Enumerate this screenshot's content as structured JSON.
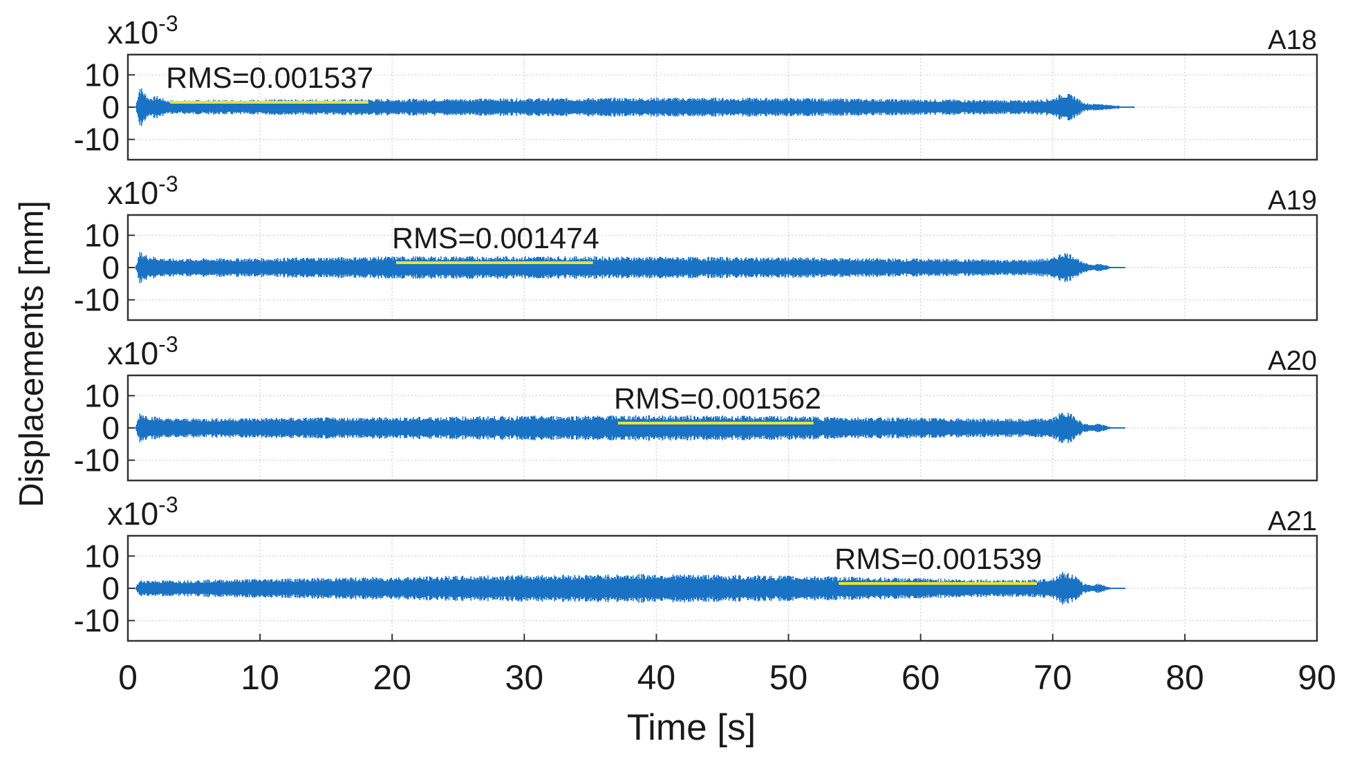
{
  "chart_data": {
    "type": "line",
    "shared_x": {
      "label": "Time [s]",
      "range": [
        0,
        90
      ],
      "ticks": [
        0,
        10,
        20,
        30,
        40,
        50,
        60,
        70,
        80,
        90
      ],
      "tick_labels": [
        "0",
        "10",
        "20",
        "30",
        "40",
        "50",
        "60",
        "70",
        "80",
        "90"
      ]
    },
    "shared_ylabel": "Displacements [mm]",
    "grid": true,
    "colors": {
      "signal": "#1a72c4",
      "rms": "#e6e62e"
    },
    "panels": [
      {
        "title": "A18",
        "exponent_label": "x10",
        "exponent": "-3",
        "ylim": [
          -15,
          15
        ],
        "y_ticks": [
          10,
          0,
          -10
        ],
        "y_tick_labels": [
          "10",
          "0",
          "-10"
        ],
        "rms_label": "RMS=0.001537",
        "rms_segment": {
          "x": [
            3.2,
            18.2
          ],
          "y": 1.5
        },
        "envelope": [
          [
            0.6,
            0.5
          ],
          [
            0.9,
            7
          ],
          [
            1.2,
            5
          ],
          [
            1.6,
            3
          ],
          [
            2.2,
            3.5
          ],
          [
            3,
            2.2
          ],
          [
            10,
            2.4
          ],
          [
            20,
            2.6
          ],
          [
            30,
            2.8
          ],
          [
            40,
            3.0
          ],
          [
            50,
            2.9
          ],
          [
            60,
            2.5
          ],
          [
            68,
            2.2
          ],
          [
            70,
            2.8
          ],
          [
            70.8,
            4.5
          ],
          [
            71.6,
            3.8
          ],
          [
            72.3,
            1.5
          ],
          [
            73,
            1.0
          ],
          [
            73.5,
            1.2
          ],
          [
            74,
            0.8
          ],
          [
            75,
            0.5
          ]
        ]
      },
      {
        "title": "A19",
        "exponent_label": "x10",
        "exponent": "-3",
        "ylim": [
          -15,
          15
        ],
        "y_ticks": [
          10,
          0,
          -10
        ],
        "y_tick_labels": [
          "10",
          "0",
          "-10"
        ],
        "rms_label": "RMS=0.001474",
        "rms_segment": {
          "x": [
            20.3,
            35.2
          ],
          "y": 1.5
        },
        "envelope": [
          [
            0.6,
            0.5
          ],
          [
            0.9,
            5
          ],
          [
            1.5,
            3.8
          ],
          [
            3,
            2.8
          ],
          [
            10,
            3.0
          ],
          [
            20,
            3.5
          ],
          [
            30,
            3.6
          ],
          [
            40,
            3.4
          ],
          [
            50,
            3.2
          ],
          [
            60,
            2.8
          ],
          [
            68,
            2.5
          ],
          [
            70,
            3.0
          ],
          [
            70.8,
            5.0
          ],
          [
            71.6,
            4.0
          ],
          [
            72.3,
            1.5
          ],
          [
            73,
            1.0
          ],
          [
            73.5,
            1.3
          ],
          [
            74,
            0.8
          ],
          [
            74.3,
            0.4
          ]
        ]
      },
      {
        "title": "A20",
        "exponent_label": "x10",
        "exponent": "-3",
        "ylim": [
          -15,
          15
        ],
        "y_ticks": [
          10,
          0,
          -10
        ],
        "y_tick_labels": [
          "10",
          "0",
          "-10"
        ],
        "rms_label": "RMS=0.001562",
        "rms_segment": {
          "x": [
            37.1,
            51.9
          ],
          "y": 1.5
        },
        "envelope": [
          [
            0.6,
            0.5
          ],
          [
            0.9,
            5
          ],
          [
            1.5,
            4.0
          ],
          [
            3,
            3.0
          ],
          [
            10,
            3.2
          ],
          [
            20,
            3.4
          ],
          [
            30,
            3.8
          ],
          [
            40,
            4.0
          ],
          [
            50,
            3.7
          ],
          [
            60,
            3.2
          ],
          [
            68,
            2.8
          ],
          [
            70,
            3.2
          ],
          [
            70.8,
            5.2
          ],
          [
            71.6,
            4.2
          ],
          [
            72.3,
            1.5
          ],
          [
            73,
            1.0
          ],
          [
            73.5,
            1.4
          ],
          [
            74,
            0.8
          ],
          [
            74.3,
            0.4
          ]
        ]
      },
      {
        "title": "A21",
        "exponent_label": "x10",
        "exponent": "-3",
        "ylim": [
          -15,
          15
        ],
        "y_ticks": [
          10,
          0,
          -10
        ],
        "y_tick_labels": [
          "10",
          "0",
          "-10"
        ],
        "rms_label": "RMS=0.001539",
        "rms_segment": {
          "x": [
            53.8,
            68.8
          ],
          "y": 1.5
        },
        "envelope": [
          [
            0.6,
            0.5
          ],
          [
            0.9,
            2.5
          ],
          [
            1.5,
            2.6
          ],
          [
            3,
            2.5
          ],
          [
            10,
            3.0
          ],
          [
            20,
            3.6
          ],
          [
            30,
            4.2
          ],
          [
            40,
            4.5
          ],
          [
            50,
            4.0
          ],
          [
            60,
            3.2
          ],
          [
            68,
            2.6
          ],
          [
            70,
            3.3
          ],
          [
            70.8,
            5.3
          ],
          [
            71.6,
            4.3
          ],
          [
            72.3,
            1.6
          ],
          [
            73,
            1.0
          ],
          [
            73.5,
            1.6
          ],
          [
            74,
            0.8
          ],
          [
            74.3,
            0.4
          ]
        ]
      }
    ]
  }
}
